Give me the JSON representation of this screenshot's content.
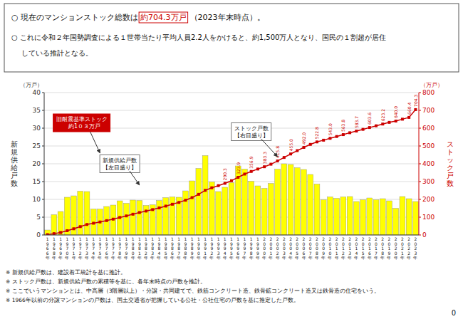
{
  "chart_data": {
    "type": "bar",
    "title": [
      "○ 現在のマンションストック総数は",
      "約704.3万戸",
      "（2023年末時点）。"
    ],
    "subtitle": [
      "○ これに令和２年国勢調査による１世帯当たり平均人員2.2人をかけると、約1,500万人となり、国民の１割超が居住",
      "している推計となる。"
    ],
    "categories": [
      "1966年",
      "1968年",
      "1969年",
      "1970年",
      "1971年",
      "1972年",
      "1973年",
      "1974年",
      "1975年",
      "1976年",
      "1977年",
      "1978年",
      "1979年",
      "1980年",
      "1981年",
      "1982年",
      "1983年",
      "1984年",
      "1985年",
      "1986年",
      "1987年",
      "1988年",
      "1989年",
      "1990年",
      "1991年",
      "1992年",
      "1993年",
      "1994年",
      "1995年",
      "1996年",
      "1997年",
      "1998年",
      "1999年",
      "2000年",
      "2001年",
      "2002年",
      "2003年",
      "2004年",
      "2005年",
      "2006年",
      "2007年",
      "2008年",
      "2009年",
      "2010年",
      "2011年",
      "2012年",
      "2013年",
      "2014年",
      "2015年",
      "2016年",
      "2017年",
      "2018年",
      "2019年",
      "2020年",
      "2021年",
      "2022年",
      "2023年"
    ],
    "series": [
      {
        "type": "bar",
        "color": "#FFFF00",
        "values": [
          1.4,
          5.7,
          6.6,
          10.6,
          11.0,
          12.3,
          12.2,
          7.3,
          7.3,
          8.0,
          8.4,
          9.6,
          8.9,
          9.8,
          9.7,
          8.3,
          8.5,
          9.7,
          10.5,
          10.7,
          10.6,
          12.4,
          15.2,
          18.7,
          22.3,
          14.9,
          12.2,
          13.4,
          14.7,
          19.4,
          18.5,
          15.1,
          13.8,
          13.1,
          14.5,
          18.5,
          20.0,
          19.8,
          18.9,
          18.4,
          17.0,
          14.3,
          9.9,
          10.7,
          10.3,
          10.7,
          10.8,
          9.4,
          9.9,
          10.4,
          9.9,
          10.2,
          9.6,
          7.5,
          10.8,
          10.2,
          9.4
        ]
      },
      {
        "type": "line",
        "axis": "y2",
        "color": "#CC0000",
        "marker": "square",
        "line_style": "solid",
        "values": [
          2.0,
          7.5,
          13.9,
          24.2,
          34.9,
          47.0,
          59.0,
          66.1,
          73.1,
          80.8,
          89.0,
          98.4,
          107.1,
          116.7,
          126.2,
          134.3,
          142.6,
          152.1,
          162.3,
          172.7,
          183.0,
          195.1,
          210.0,
          228.5,
          250.5,
          265.1,
          277.1,
          290.3,
          304.8,
          323.9,
          342.1,
          356.9,
          370.5,
          383.3,
          397.6,
          415.8,
          435.5,
          455.0,
          473.8,
          492.0,
          508.8,
          522.8,
          532.5,
          543.0,
          553.2,
          563.8,
          574.4,
          583.7,
          593.4,
          603.6,
          613.3,
          623.2,
          632.6,
          640.0,
          650.5,
          660.4,
          704.3
        ],
        "value_labels": [
          null,
          null,
          null,
          null,
          null,
          null,
          null,
          null,
          null,
          null,
          null,
          null,
          null,
          null,
          null,
          null,
          null,
          null,
          null,
          null,
          null,
          null,
          null,
          null,
          null,
          null,
          null,
          "290.3",
          null,
          "323.9",
          null,
          "356.9",
          null,
          "383.3",
          null,
          "415.8",
          null,
          "455.0",
          null,
          "492.0",
          null,
          "522.8",
          null,
          "543.0",
          null,
          "563.8",
          null,
          "583.7",
          null,
          "603.6",
          null,
          "623.2",
          null,
          "640.0",
          null,
          "660.4",
          "704.3"
        ]
      }
    ],
    "ylabel": "新\n規\n供\n給\n戸\n数",
    "y2label": "ス\nト\nッ\nク\n戸\n数",
    "y_unit": "（万戸）",
    "y2_unit": "（万戸）",
    "ylim": [
      0,
      40
    ],
    "yticks": [
      0,
      5,
      10,
      15,
      20,
      25,
      30,
      35,
      40
    ],
    "y2lim": [
      0,
      800
    ],
    "y2ticks": [
      0,
      100,
      200,
      300,
      400,
      500,
      600,
      700,
      800
    ],
    "grid": true,
    "annotations": [
      "旧耐震基準ストック\n　約1０３万戸",
      "ストック戸数\n【右目盛り】",
      "新規供給戸数\n【左目盛り】"
    ],
    "footnotes": [
      "※ 新規供給戸数は、建設着工統計を基に推計。",
      "※ ストック戸数は、新規供給戸数の累積等を基に、各年末時点の戸数を推計。",
      "※ ここでいうマンションとは、中高層（3階層以上）・分譲・共同建てで、鉄筋コンクリート造、鉄骨鉱コンクリート造又は鉄骨造の住宅をいう。",
      "※ 1966年以前の分譲マンションの戸数は、国土交通省が把握している公社・公社住宅の戸数を基に推定した戸数。"
    ],
    "page_number": "0"
  }
}
